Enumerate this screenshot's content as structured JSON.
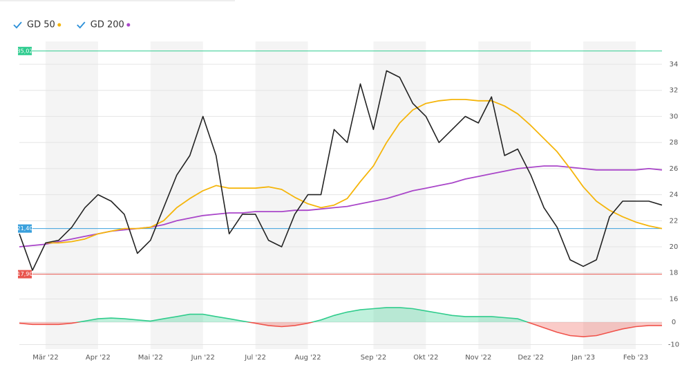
{
  "chart_data": [
    {
      "type": "line",
      "categories": [
        null,
        null,
        "Mär '22",
        null,
        null,
        null,
        "Apr '22",
        null,
        null,
        null,
        "Mai '22",
        null,
        null,
        null,
        "Jun '22",
        null,
        null,
        null,
        "Jul '22",
        null,
        null,
        null,
        "Aug '22",
        null,
        null,
        null,
        null,
        "Sep '22",
        null,
        null,
        null,
        "Okt '22",
        null,
        null,
        null,
        "Nov '22",
        null,
        null,
        null,
        "Dez '22",
        null,
        null,
        null,
        "Jan '23",
        null,
        null,
        null,
        "Feb '23",
        null,
        null
      ],
      "series": [
        {
          "color": "#222222",
          "values": [
            21,
            18.2,
            20.3,
            20.5,
            21.5,
            23,
            24,
            23.5,
            22.5,
            19.5,
            20.5,
            23,
            25.5,
            27,
            30,
            27,
            21,
            22.5,
            22.5,
            20.5,
            20,
            22.5,
            24,
            24,
            29,
            28,
            32.5,
            29,
            33.5,
            33,
            31,
            30,
            28,
            29,
            30,
            29.5,
            31.5,
            27,
            27.5,
            25.5,
            23,
            21.5,
            19,
            18.5,
            19,
            22.3,
            23.5,
            23.5,
            23.5,
            23.2
          ]
        },
        {
          "name": "GD 50",
          "color": "#f5b50a",
          "values": [
            null,
            null,
            20.3,
            20.3,
            20.4,
            20.6,
            21,
            21.2,
            21.4,
            21.4,
            21.5,
            22,
            23,
            23.7,
            24.3,
            24.7,
            24.5,
            24.5,
            24.5,
            24.6,
            24.4,
            23.8,
            23.3,
            23,
            23.2,
            23.7,
            25,
            26.2,
            28,
            29.5,
            30.5,
            31,
            31.2,
            31.3,
            31.3,
            31.2,
            31.2,
            30.8,
            30.2,
            29.3,
            28.3,
            27.3,
            26,
            24.6,
            23.5,
            22.8,
            22.3,
            21.9,
            21.6,
            21.4
          ]
        },
        {
          "name": "GD 200",
          "color": "#a946c9",
          "values": [
            20,
            20.1,
            20.2,
            20.4,
            20.6,
            20.8,
            21,
            21.2,
            21.3,
            21.4,
            21.5,
            21.7,
            22,
            22.2,
            22.4,
            22.5,
            22.6,
            22.6,
            22.7,
            22.7,
            22.7,
            22.8,
            22.8,
            22.9,
            23,
            23.1,
            23.3,
            23.5,
            23.7,
            24,
            24.3,
            24.5,
            24.7,
            24.9,
            25.2,
            25.4,
            25.6,
            25.8,
            26,
            26.1,
            26.2,
            26.2,
            26.1,
            26,
            25.9,
            25.9,
            25.9,
            25.9,
            26,
            25.9
          ]
        }
      ],
      "ref_lines": [
        {
          "value": 35.02,
          "label": "35,02",
          "color": "#2ecc8f"
        },
        {
          "value": 21.4,
          "label": "21,40",
          "color": "#3aa0dc"
        },
        {
          "value": 17.9,
          "label": "17,90",
          "color": "#e8554e"
        }
      ],
      "ylim": [
        15.6,
        35.75
      ],
      "yticks": [
        16,
        18,
        20,
        22,
        24,
        26,
        28,
        30,
        32,
        34
      ],
      "grid": true
    },
    {
      "type": "area",
      "series": [
        {
          "color": "#2fcc8c",
          "negative_color": "#f0524a",
          "values": [
            -0.5,
            -1,
            -1,
            -1,
            -0.5,
            0.5,
            1.5,
            1.8,
            1.5,
            1,
            0.5,
            1.5,
            2.5,
            3.5,
            3.5,
            2.5,
            1.5,
            0.5,
            -0.5,
            -1.5,
            -2,
            -1.5,
            -0.5,
            1,
            3,
            4.5,
            5.5,
            6,
            6.5,
            6.5,
            6,
            5,
            4,
            3,
            2.5,
            2.5,
            2.5,
            2,
            1.5,
            -0.5,
            -2.5,
            -4.5,
            -6,
            -6.5,
            -6,
            -4.5,
            -3,
            -2,
            -1.5,
            -1.5
          ]
        }
      ],
      "ylim": [
        -12,
        8
      ],
      "yticks": [
        -10,
        0
      ],
      "grid": true
    }
  ]
}
